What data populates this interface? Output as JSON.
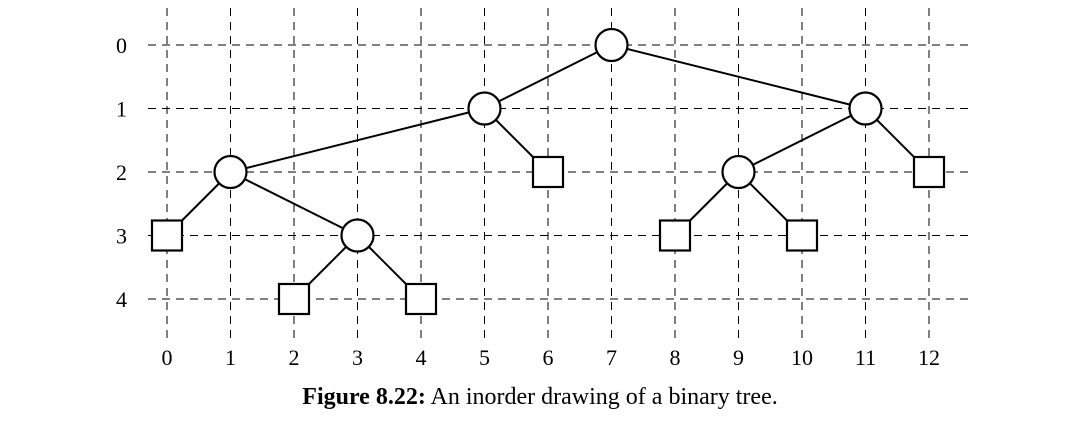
{
  "figure": {
    "caption_label": "Figure 8.22:",
    "caption_text": "An inorder drawing of a binary tree."
  },
  "axes": {
    "x_ticks": [
      "0",
      "1",
      "2",
      "3",
      "4",
      "5",
      "6",
      "7",
      "8",
      "9",
      "10",
      "11",
      "12"
    ],
    "y_ticks": [
      "0",
      "1",
      "2",
      "3",
      "4"
    ],
    "grid": true
  },
  "tree": {
    "nodes": [
      {
        "id": "n7",
        "kind": "internal",
        "x": 7,
        "y": 0
      },
      {
        "id": "n5",
        "kind": "internal",
        "x": 5,
        "y": 1
      },
      {
        "id": "n11",
        "kind": "internal",
        "x": 11,
        "y": 1
      },
      {
        "id": "n1",
        "kind": "internal",
        "x": 1,
        "y": 2
      },
      {
        "id": "e6",
        "kind": "external",
        "x": 6,
        "y": 2
      },
      {
        "id": "n9",
        "kind": "internal",
        "x": 9,
        "y": 2
      },
      {
        "id": "e12",
        "kind": "external",
        "x": 12,
        "y": 2
      },
      {
        "id": "e0",
        "kind": "external",
        "x": 0,
        "y": 3
      },
      {
        "id": "n3",
        "kind": "internal",
        "x": 3,
        "y": 3
      },
      {
        "id": "e8",
        "kind": "external",
        "x": 8,
        "y": 3
      },
      {
        "id": "e10",
        "kind": "external",
        "x": 10,
        "y": 3
      },
      {
        "id": "e2",
        "kind": "external",
        "x": 2,
        "y": 4
      },
      {
        "id": "e4",
        "kind": "external",
        "x": 4,
        "y": 4
      }
    ],
    "edges": [
      [
        "n7",
        "n5"
      ],
      [
        "n7",
        "n11"
      ],
      [
        "n5",
        "n1"
      ],
      [
        "n5",
        "e6"
      ],
      [
        "n11",
        "n9"
      ],
      [
        "n11",
        "e12"
      ],
      [
        "n1",
        "e0"
      ],
      [
        "n1",
        "n3"
      ],
      [
        "n9",
        "e8"
      ],
      [
        "n9",
        "e10"
      ],
      [
        "n3",
        "e2"
      ],
      [
        "n3",
        "e4"
      ]
    ]
  }
}
